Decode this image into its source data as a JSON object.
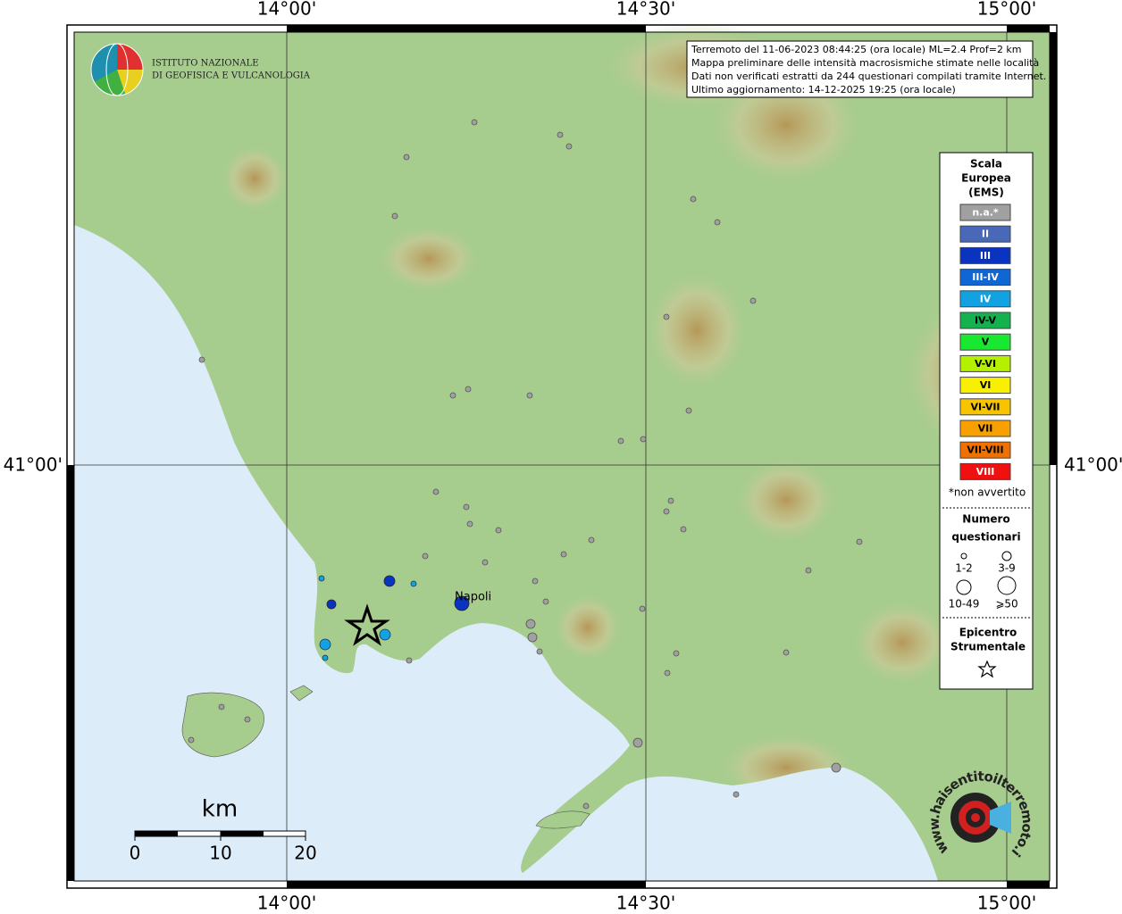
{
  "axes": {
    "top": [
      "14°00'",
      "14°30'",
      "15°00'"
    ],
    "bottom": [
      "14°00'",
      "14°30'",
      "15°00'"
    ],
    "left": "41°00'",
    "right": "41°00'"
  },
  "info": {
    "lines": [
      "Terremoto del 11-06-2023 08:44:25 (ora locale) ML=2.4 Prof=2 km",
      "Mappa preliminare delle intensità macrosismiche stimate nelle località",
      "Dati non verificati estratti da 244 questionari compilati tramite Internet.",
      "Ultimo aggiornamento: 14-12-2025 19:25 (ora locale)"
    ]
  },
  "logo_ingv": {
    "lines": [
      "ISTITUTO NAZIONALE",
      "DI GEOFISICA E VULCANOLOGIA"
    ]
  },
  "legend": {
    "title": [
      "Scala",
      "Europea",
      "(EMS)"
    ],
    "items": [
      {
        "label": "n.a.*",
        "color": "#a0a0a0",
        "text_color": "#ffffff"
      },
      {
        "label": "II",
        "color": "#4a68b8",
        "text_color": "#ffffff"
      },
      {
        "label": "III",
        "color": "#0a34c0",
        "text_color": "#ffffff"
      },
      {
        "label": "III-IV",
        "color": "#1066d2",
        "text_color": "#ffffff"
      },
      {
        "label": "IV",
        "color": "#12a2e2",
        "text_color": "#ffffff"
      },
      {
        "label": "IV-V",
        "color": "#14b24e",
        "text_color": "#000000"
      },
      {
        "label": "V",
        "color": "#18e830",
        "text_color": "#000000"
      },
      {
        "label": "V-VI",
        "color": "#b4f000",
        "text_color": "#000000"
      },
      {
        "label": "VI",
        "color": "#f8f000",
        "text_color": "#000000"
      },
      {
        "label": "VI-VII",
        "color": "#f8c400",
        "text_color": "#000000"
      },
      {
        "label": "VII",
        "color": "#f8a000",
        "text_color": "#000000"
      },
      {
        "label": "VII-VIII",
        "color": "#f07000",
        "text_color": "#000000"
      },
      {
        "label": "VIII",
        "color": "#f01010",
        "text_color": "#ffffff"
      }
    ],
    "note": "*non avvertito",
    "size_title": [
      "Numero",
      "questionari"
    ],
    "sizes": [
      "1-2",
      "3-9",
      "10-49",
      "⩾50"
    ],
    "epicenter": [
      "Epicentro",
      "Strumentale"
    ]
  },
  "scale_bar": {
    "unit": "km",
    "labels": [
      "0",
      "10",
      "20"
    ]
  },
  "places": [
    "Napoli"
  ],
  "logo_hsit": "www.haisentitoilterremoto.it"
}
